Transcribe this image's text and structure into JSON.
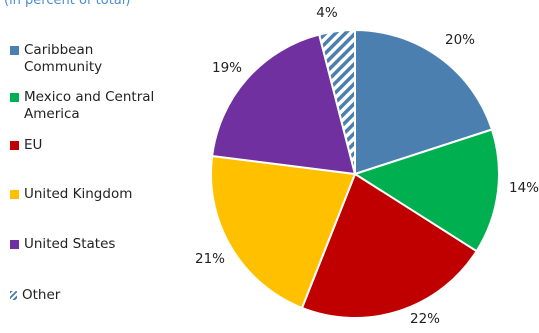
{
  "subtitle": "(in percent of total)",
  "chart_data": {
    "type": "pie",
    "title": "",
    "subtitle": "(in percent of total)",
    "start_angle_deg": 0,
    "direction": "clockwise",
    "legend_placement": "left",
    "slices": [
      {
        "name": "Caribbean Community",
        "value": 20,
        "label": "20%",
        "color": "#4a7fb0"
      },
      {
        "name": "Mexico and Central America",
        "value": 14,
        "label": "14%",
        "color": "#00b050"
      },
      {
        "name": "EU",
        "value": 22,
        "label": "22%",
        "color": "#c00000"
      },
      {
        "name": "United Kingdom",
        "value": 21,
        "label": "21%",
        "color": "#ffc000"
      },
      {
        "name": "United States",
        "value": 19,
        "label": "19%",
        "color": "#7030a0"
      },
      {
        "name": "Other",
        "value": 4,
        "label": "4%",
        "color": "#4a7fb0",
        "pattern": "diagonal-stripes"
      }
    ]
  }
}
